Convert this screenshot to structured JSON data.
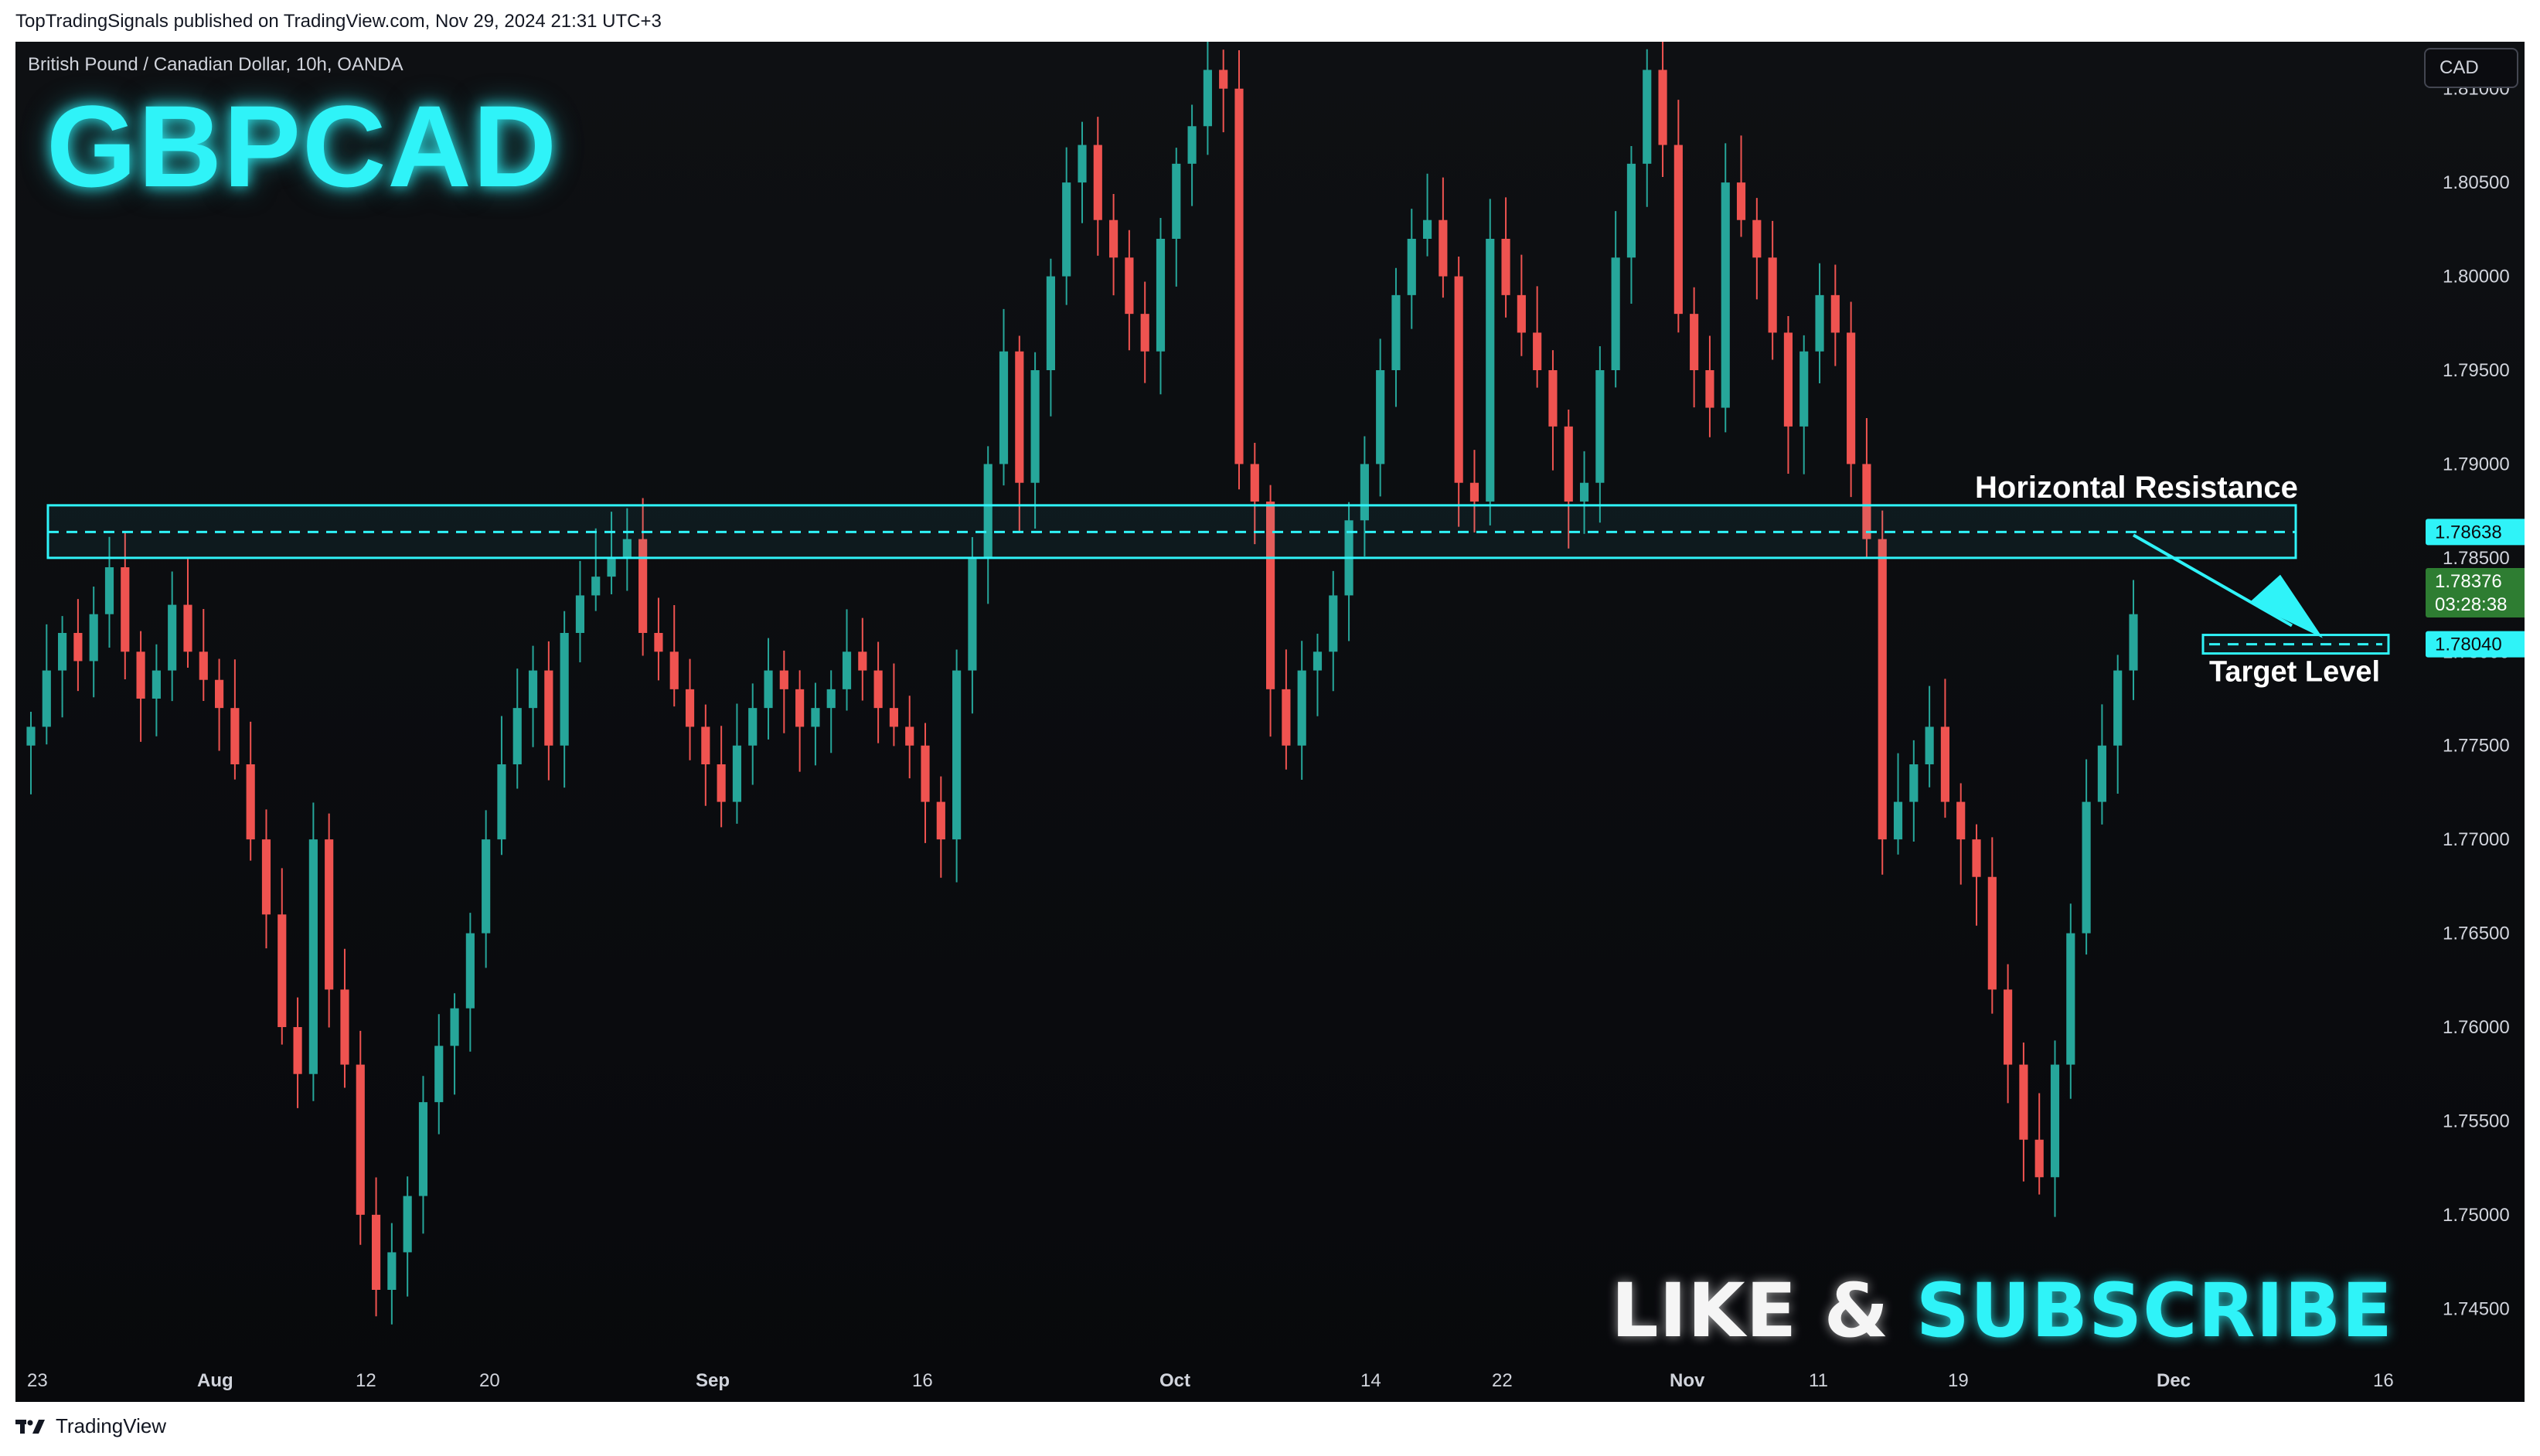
{
  "header": {
    "caption": "TopTradingSignals published on TradingView.com, Nov 29, 2024 21:31 UTC+3"
  },
  "chart_info": {
    "symbol_line": "British Pound / Canadian Dollar, 10h, OANDA",
    "ticker": "GBPCAD",
    "currency_button": "CAD"
  },
  "overlay": {
    "like": "LIKE &",
    "subscribe": "SUBSCRIBE"
  },
  "footer": {
    "brand": "TradingView"
  },
  "colors": {
    "up": "#26a69a",
    "down": "#ef5350",
    "accent": "#2ff3f8",
    "background": "#0b0c10"
  },
  "chart_data": {
    "type": "candlestick",
    "ylim": [
      1.7425,
      1.8125
    ],
    "yticks": [
      1.745,
      1.75,
      1.755,
      1.76,
      1.765,
      1.77,
      1.775,
      1.78,
      1.785,
      1.79,
      1.795,
      1.8,
      1.805,
      1.81
    ],
    "ytick_labels": [
      "1.74500",
      "1.75000",
      "1.75500",
      "1.76000",
      "1.76500",
      "1.77000",
      "1.77500",
      "1.78000",
      "1.78500",
      "1.79000",
      "1.79500",
      "1.80000",
      "1.80500",
      "1.81000"
    ],
    "xticks": [
      {
        "label": "23",
        "bold": false
      },
      {
        "label": "Aug",
        "bold": true
      },
      {
        "label": "12",
        "bold": false
      },
      {
        "label": "20",
        "bold": false
      },
      {
        "label": "Sep",
        "bold": true
      },
      {
        "label": "16",
        "bold": false
      },
      {
        "label": "Oct",
        "bold": true
      },
      {
        "label": "14",
        "bold": false
      },
      {
        "label": "22",
        "bold": false
      },
      {
        "label": "Nov",
        "bold": true
      },
      {
        "label": "11",
        "bold": false
      },
      {
        "label": "19",
        "bold": false
      },
      {
        "label": "Dec",
        "bold": true
      },
      {
        "label": "16",
        "bold": false
      }
    ],
    "closes": [
      1.776,
      1.779,
      1.781,
      1.7795,
      1.782,
      1.7845,
      1.78,
      1.7775,
      1.779,
      1.7825,
      1.78,
      1.7785,
      1.777,
      1.774,
      1.77,
      1.766,
      1.76,
      1.7575,
      1.77,
      1.762,
      1.758,
      1.75,
      1.746,
      1.748,
      1.751,
      1.756,
      1.759,
      1.761,
      1.765,
      1.77,
      1.774,
      1.777,
      1.779,
      1.775,
      1.781,
      1.783,
      1.784,
      1.785,
      1.786,
      1.781,
      1.78,
      1.778,
      1.776,
      1.774,
      1.772,
      1.775,
      1.777,
      1.779,
      1.778,
      1.776,
      1.777,
      1.778,
      1.78,
      1.779,
      1.777,
      1.776,
      1.775,
      1.772,
      1.77,
      1.779,
      1.785,
      1.79,
      1.796,
      1.789,
      1.795,
      1.8,
      1.805,
      1.807,
      1.803,
      1.801,
      1.798,
      1.796,
      1.802,
      1.806,
      1.808,
      1.811,
      1.81,
      1.79,
      1.788,
      1.778,
      1.775,
      1.779,
      1.78,
      1.783,
      1.787,
      1.79,
      1.795,
      1.799,
      1.802,
      1.803,
      1.8,
      1.789,
      1.788,
      1.802,
      1.799,
      1.797,
      1.795,
      1.792,
      1.788,
      1.789,
      1.795,
      1.801,
      1.806,
      1.811,
      1.807,
      1.798,
      1.795,
      1.793,
      1.805,
      1.803,
      1.801,
      1.797,
      1.792,
      1.796,
      1.799,
      1.797,
      1.79,
      1.786,
      1.77,
      1.772,
      1.774,
      1.776,
      1.772,
      1.77,
      1.768,
      1.762,
      1.758,
      1.754,
      1.752,
      1.758,
      1.765,
      1.772,
      1.775,
      1.779,
      1.782
    ],
    "last_price": 1.78376,
    "countdown": "03:28:38",
    "resistance_zone": {
      "low": 1.785,
      "high": 1.7878,
      "mid": 1.78638
    },
    "target_level": 1.7804,
    "resistance_label_text": "1.78638",
    "last_price_label_text": "1.78376",
    "target_label_text": "1.78040",
    "annotations": [
      {
        "text": "Horizontal Resistance"
      },
      {
        "text": "Target Level"
      }
    ]
  }
}
